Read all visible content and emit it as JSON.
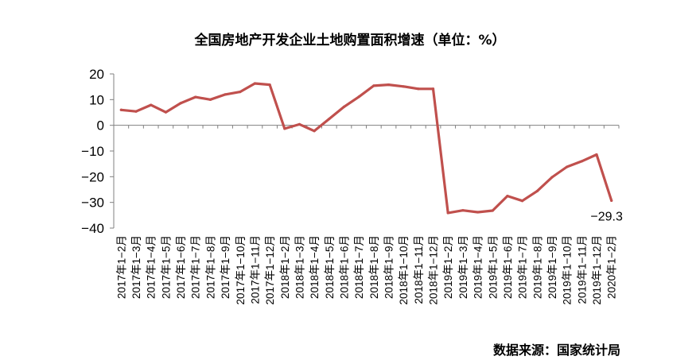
{
  "chart_data": {
    "type": "line",
    "title": "全国房地产开发企业土地购置面积增速（单位：%）",
    "xlabel": "",
    "ylabel": "",
    "ylim": [
      -40,
      20
    ],
    "yticks": [
      "20",
      "10",
      "0",
      "−10",
      "−20",
      "−30",
      "−40"
    ],
    "grid": false,
    "categories": [
      "2017年1−2月",
      "2017年1−3月",
      "2017年1−4月",
      "2017年1−5月",
      "2017年1−6月",
      "2017年1−7月",
      "2017年1−8月",
      "2017年1−9月",
      "2017年1−10月",
      "2017年1−11月",
      "2017年1−12月",
      "2018年1−2月",
      "2018年1−3月",
      "2018年1−4月",
      "2018年1−5月",
      "2018年1−6月",
      "2018年1−7月",
      "2018年1−8月",
      "2018年1−9月",
      "2018年1−10月",
      "2018年1−11月",
      "2018年1−12月",
      "2019年1−2月",
      "2019年1−3月",
      "2019年1−4月",
      "2019年1−5月",
      "2019年1−6月",
      "2019年1−7月",
      "2019年1−8月",
      "2019年1−9月",
      "2019年1−10月",
      "2019年1−11月",
      "2019年1−12月",
      "2020年1−2月"
    ],
    "series": [
      {
        "values": [
          6.0,
          5.4,
          7.9,
          5.1,
          8.6,
          11.0,
          10.0,
          12.0,
          13.0,
          16.3,
          15.8,
          -1.3,
          0.4,
          -2.2,
          2.5,
          7.2,
          11.1,
          15.4,
          15.8,
          15.1,
          14.2,
          14.2,
          -34.1,
          -33.1,
          -33.8,
          -33.2,
          -27.5,
          -29.4,
          -25.6,
          -20.2,
          -16.2,
          -14.0,
          -11.4,
          -29.3
        ],
        "color": "#c0504d"
      }
    ],
    "annotations": [
      {
        "category_index": 33,
        "text": "−29.3"
      }
    ]
  },
  "footer": {
    "source": "数据来源：国家统计局"
  }
}
